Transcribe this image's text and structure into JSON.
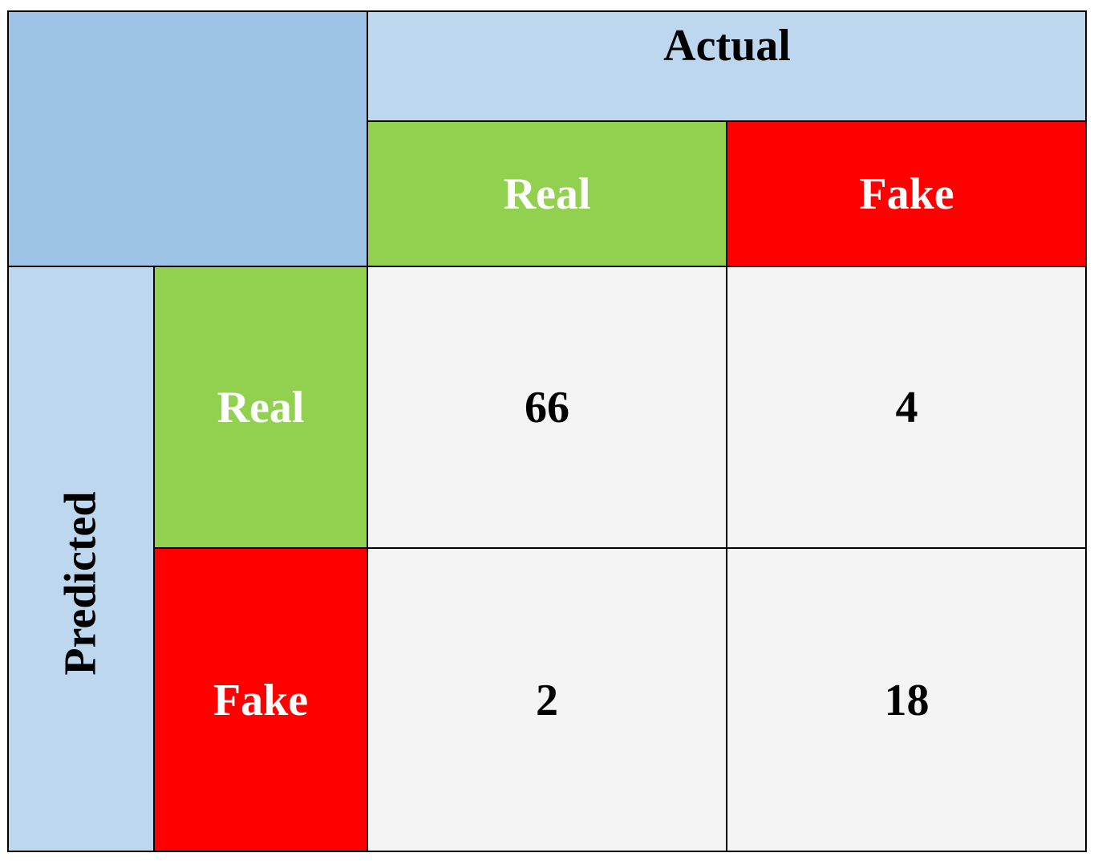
{
  "chart_data": {
    "type": "table",
    "actual_label": "Actual",
    "predicted_label": "Predicted",
    "columns": [
      "Real",
      "Fake"
    ],
    "rows": [
      "Real",
      "Fake"
    ],
    "values": [
      [
        66,
        4
      ],
      [
        2,
        18
      ]
    ]
  },
  "colors": {
    "header_blue_dark": "#9dc3e6",
    "header_blue_light": "#bdd7ee",
    "real_green": "#92d050",
    "fake_red": "#ff0000",
    "cell_bg": "#f4f4f4"
  }
}
